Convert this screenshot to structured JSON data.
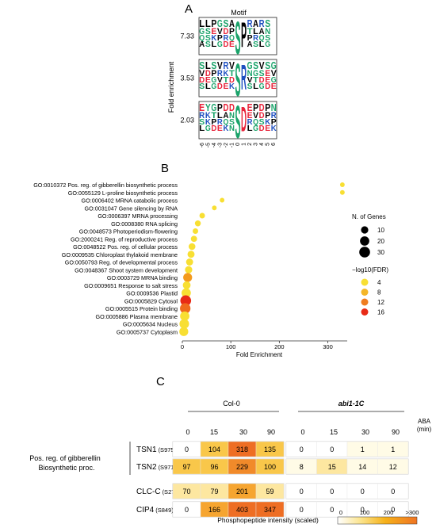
{
  "panelA": {
    "label": "A",
    "title": "Motif",
    "ylabel": "Fold enrichment",
    "positions": [
      "-6",
      "-5",
      "-4",
      "-3",
      "-2",
      "-1",
      "0",
      "1",
      "2",
      "3",
      "4",
      "5",
      "6"
    ],
    "rows": [
      {
        "enrichment": "7.33",
        "central": "S",
        "next": "P",
        "prefix": "LLPGSAS",
        "suffix": "PRARS"
      },
      {
        "enrichment": "3.53",
        "central": "S",
        "next": "R",
        "prefix": "SLSVRVD",
        "suffix": "SGSVSG"
      },
      {
        "enrichment": "2.03",
        "central": "S",
        "next": "D",
        "prefix": "EYGPDDD",
        "suffix": "DEPDPN"
      }
    ],
    "colors": {
      "acidic": "#e8233a",
      "basic": "#1e4fc0",
      "polar": "#1aa36a",
      "hydrophobic": "#000000",
      "other": "#7a2a9c"
    }
  },
  "panelB": {
    "label": "B",
    "xlabel": "Fold Enrichment",
    "xticks": [
      "0",
      "100",
      "200",
      "300"
    ],
    "legend_size_title": "N. of Genes",
    "legend_size": [
      "10",
      "20",
      "30"
    ],
    "legend_color_title": "−log10(FDR)",
    "legend_color": [
      "4",
      "8",
      "12",
      "16"
    ]
  },
  "chart_data": {
    "type": "scatter",
    "xlabel": "Fold Enrichment",
    "xlim": [
      0,
      340
    ],
    "categories": [
      "GO:0010372 Pos. reg. of gibberellin biosynthetic process",
      "GO:0055129 L-proline biosynthetic process",
      "GO:0006402 MRNA catabolic process",
      "GO:0031047 Gene silencing by RNA",
      "GO:0006397 MRNA processing",
      "GO:0008380 RNA splicing",
      "GO:0048573 Photoperiodism-flowering",
      "GO:2000241 Reg. of reproductive process",
      "GO:0048522 Pos. reg. of cellular process",
      "GO:0009535 Chloroplast thylakoid membrane",
      "GO:0050793 Reg. of developmental process",
      "GO:0048367 Shoot system development",
      "GO:0003729 MRNA binding",
      "GO:0009651 Response to salt stress",
      "GO:0009536 Plastid",
      "GO:0005829 Cytosol",
      "GO:0005515 Protein binding",
      "GO:0005886 Plasma membrane",
      "GO:0005634 Nucleus",
      "GO:0005737 Cytoplasm"
    ],
    "fold_enrichment": [
      330,
      330,
      82,
      66,
      41,
      32,
      27,
      24,
      20,
      18,
      15,
      13,
      11,
      9,
      8,
      7,
      6,
      5,
      4,
      3
    ],
    "n_genes": [
      2,
      2,
      2,
      2,
      4,
      5,
      4,
      6,
      8,
      9,
      9,
      10,
      18,
      12,
      20,
      30,
      28,
      20,
      22,
      18
    ],
    "neg_log10_fdr": [
      3,
      3,
      3,
      3,
      4,
      4,
      4,
      5,
      5,
      5,
      5,
      5,
      10,
      4,
      5,
      16,
      13,
      5,
      4,
      3
    ]
  },
  "panelC": {
    "label": "C",
    "group1": "Col-0",
    "group2": "abi1-1C",
    "aba_label": "ABA",
    "min_label": "(min)",
    "times": [
      "0",
      "15",
      "30",
      "90",
      "0",
      "15",
      "30",
      "90"
    ],
    "bracket_label": "Pos. reg. of gibberellin Biosynthetic proc.",
    "proteins": [
      {
        "name": "TSN1",
        "site": "(S975)",
        "values": [
          0,
          104,
          318,
          135,
          0,
          0,
          1,
          1
        ]
      },
      {
        "name": "TSN2",
        "site": "(S971)",
        "values": [
          97,
          96,
          229,
          100,
          8,
          15,
          14,
          12
        ]
      },
      {
        "name": "CLC-C",
        "site": "(S27)",
        "values": [
          70,
          79,
          201,
          59,
          0,
          0,
          0,
          0
        ]
      },
      {
        "name": "CIP4",
        "site": "(S849)",
        "values": [
          0,
          166,
          403,
          347,
          0,
          0,
          0,
          0
        ]
      }
    ],
    "scale_title": "Phosphopeptide intensity (scaled)",
    "scale_ticks": [
      "0",
      "100",
      "200",
      ">300"
    ]
  }
}
